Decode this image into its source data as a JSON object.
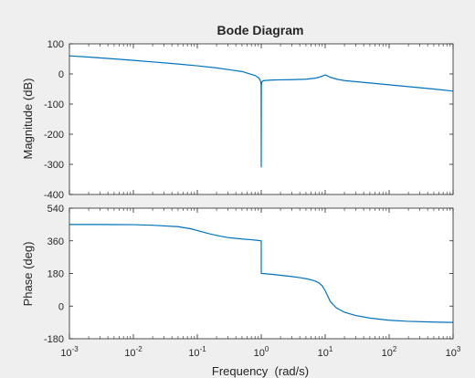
{
  "chart_data": {
    "type": "line",
    "title": "Bode Diagram",
    "xlabel": "Frequency  (rad/s)",
    "xscale": "log",
    "xlim": [
      0.001,
      1000
    ],
    "x_tick_bases": [
      "10",
      "10",
      "10",
      "10",
      "10",
      "10",
      "10"
    ],
    "x_tick_exponents": [
      "-3",
      "-2",
      "-1",
      "0",
      "1",
      "2",
      "3"
    ],
    "grid": false,
    "line_color": "#0072bd",
    "panels": [
      {
        "name": "magnitude",
        "ylabel": "Magnitude (dB)",
        "ylim": [
          -400,
          100
        ],
        "yticks": [
          100,
          0,
          -100,
          -200,
          -300,
          -400
        ],
        "ytick_labels": [
          "100",
          "0",
          "-100",
          "-200",
          "-300",
          "-400"
        ],
        "series": [
          {
            "x": [
              0.001,
              0.002,
              0.005,
              0.01,
              0.02,
              0.05,
              0.1,
              0.2,
              0.5,
              0.8,
              0.9,
              0.95,
              0.98,
              0.99,
              0.995,
              1.0,
              1.005,
              1.01,
              1.02,
              1.05,
              1.1,
              1.5,
              2,
              3,
              5,
              7,
              8,
              9,
              9.5,
              10,
              10.5,
              11,
              12,
              15,
              20,
              50,
              100,
              200,
              500,
              1000
            ],
            "y": [
              60,
              56,
              50,
              45,
              40,
              33,
              27,
              20,
              8,
              -5,
              -12,
              -18,
              -26,
              -32,
              -40,
              -310,
              -40,
              -32,
              -27,
              -24,
              -22,
              -20,
              -19.5,
              -19,
              -17.5,
              -14,
              -11,
              -7,
              -5,
              -3,
              -5,
              -7,
              -11,
              -17,
              -22,
              -30,
              -36,
              -42,
              -50,
              -57
            ]
          }
        ]
      },
      {
        "name": "phase",
        "ylabel": "Phase (deg)",
        "ylim": [
          -180,
          540
        ],
        "yticks": [
          540,
          360,
          180,
          0,
          -180
        ],
        "ytick_labels": [
          "540",
          "360",
          "180",
          "0",
          "-180"
        ],
        "series": [
          {
            "x": [
              0.001,
              0.003,
              0.01,
              0.02,
              0.05,
              0.08,
              0.1,
              0.15,
              0.2,
              0.3,
              0.5,
              0.7,
              0.9,
              0.999,
              1.001,
              1.2,
              1.5,
              2,
              3,
              4,
              5,
              6,
              7,
              8,
              9,
              10,
              11,
              12,
              15,
              20,
              30,
              50,
              100,
              200,
              500,
              1000
            ],
            "y": [
              450,
              450,
              449,
              446,
              438,
              426,
              417,
              400,
              390,
              378,
              370,
              366,
              362,
              360,
              180,
              178,
              175,
              170,
              163,
              157,
              151,
              145,
              138,
              128,
              112,
              85,
              55,
              25,
              -10,
              -34,
              -52,
              -66,
              -78,
              -84,
              -88,
              -90
            ]
          }
        ]
      }
    ]
  }
}
